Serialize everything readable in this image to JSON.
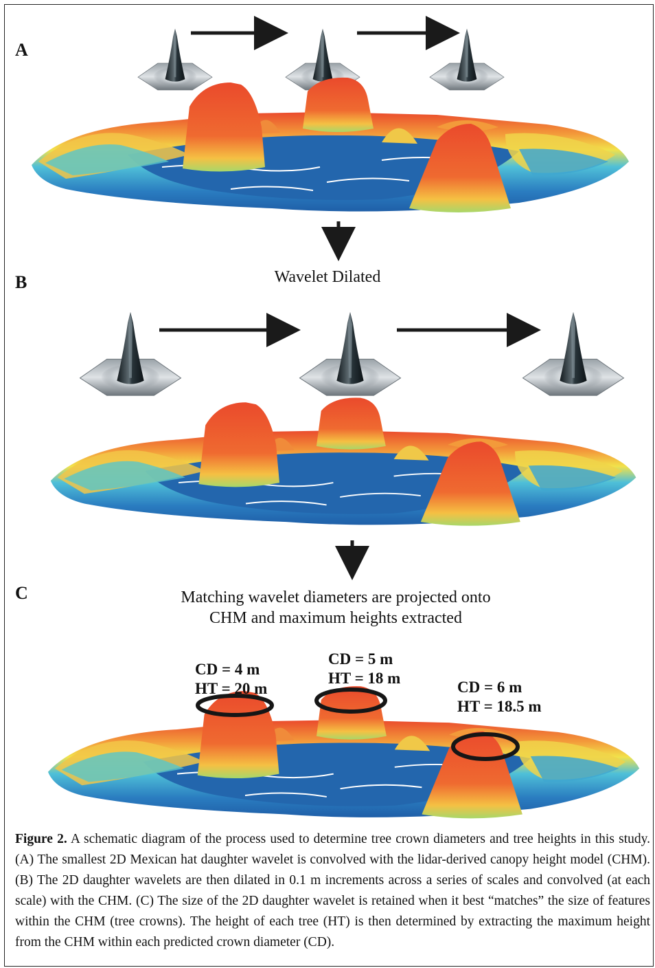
{
  "panels": {
    "a": "A",
    "b": "B",
    "c": "C"
  },
  "steps": {
    "dilated": "Wavelet Dilated",
    "projected_line1": "Matching wavelet diameters are projected onto",
    "projected_line2": "CHM and maximum heights extracted"
  },
  "annotations": [
    {
      "cd": "CD = 4 m",
      "ht": "HT = 20 m"
    },
    {
      "cd": "CD = 5 m",
      "ht": "HT = 18 m"
    },
    {
      "cd": "CD = 6 m",
      "ht": "HT = 18.5 m"
    }
  ],
  "caption": {
    "label": "Figure 2.",
    "text": "A schematic diagram of the process used to determine tree crown diameters and tree heights in this study. (A) The smallest 2D Mexican hat daughter wavelet is convolved with the lidar-derived canopy height model (CHM). (B) The 2D daughter wavelets are then dilated in 0.1 m increments across a series of scales and convolved (at each scale) with the CHM. (C) The size of the 2D daughter wavelet is retained when it best “matches” the size of features within the CHM (tree crowns). The height of each tree (HT) is then determined by extracting the maximum height from the CHM within each predicted crown diameter (CD)."
  },
  "colors": {
    "low": "#1f5fa8",
    "mid": "#4fc0d8",
    "high": "#f2e24a",
    "peak": "#ea4a2c",
    "wavelet_base": "#8a9198",
    "wavelet_spike": "#1e2a30"
  },
  "icons": [
    "mexican-hat-wavelet-icon",
    "right-arrow-icon",
    "down-arrow-icon",
    "crown-ellipse-icon"
  ]
}
